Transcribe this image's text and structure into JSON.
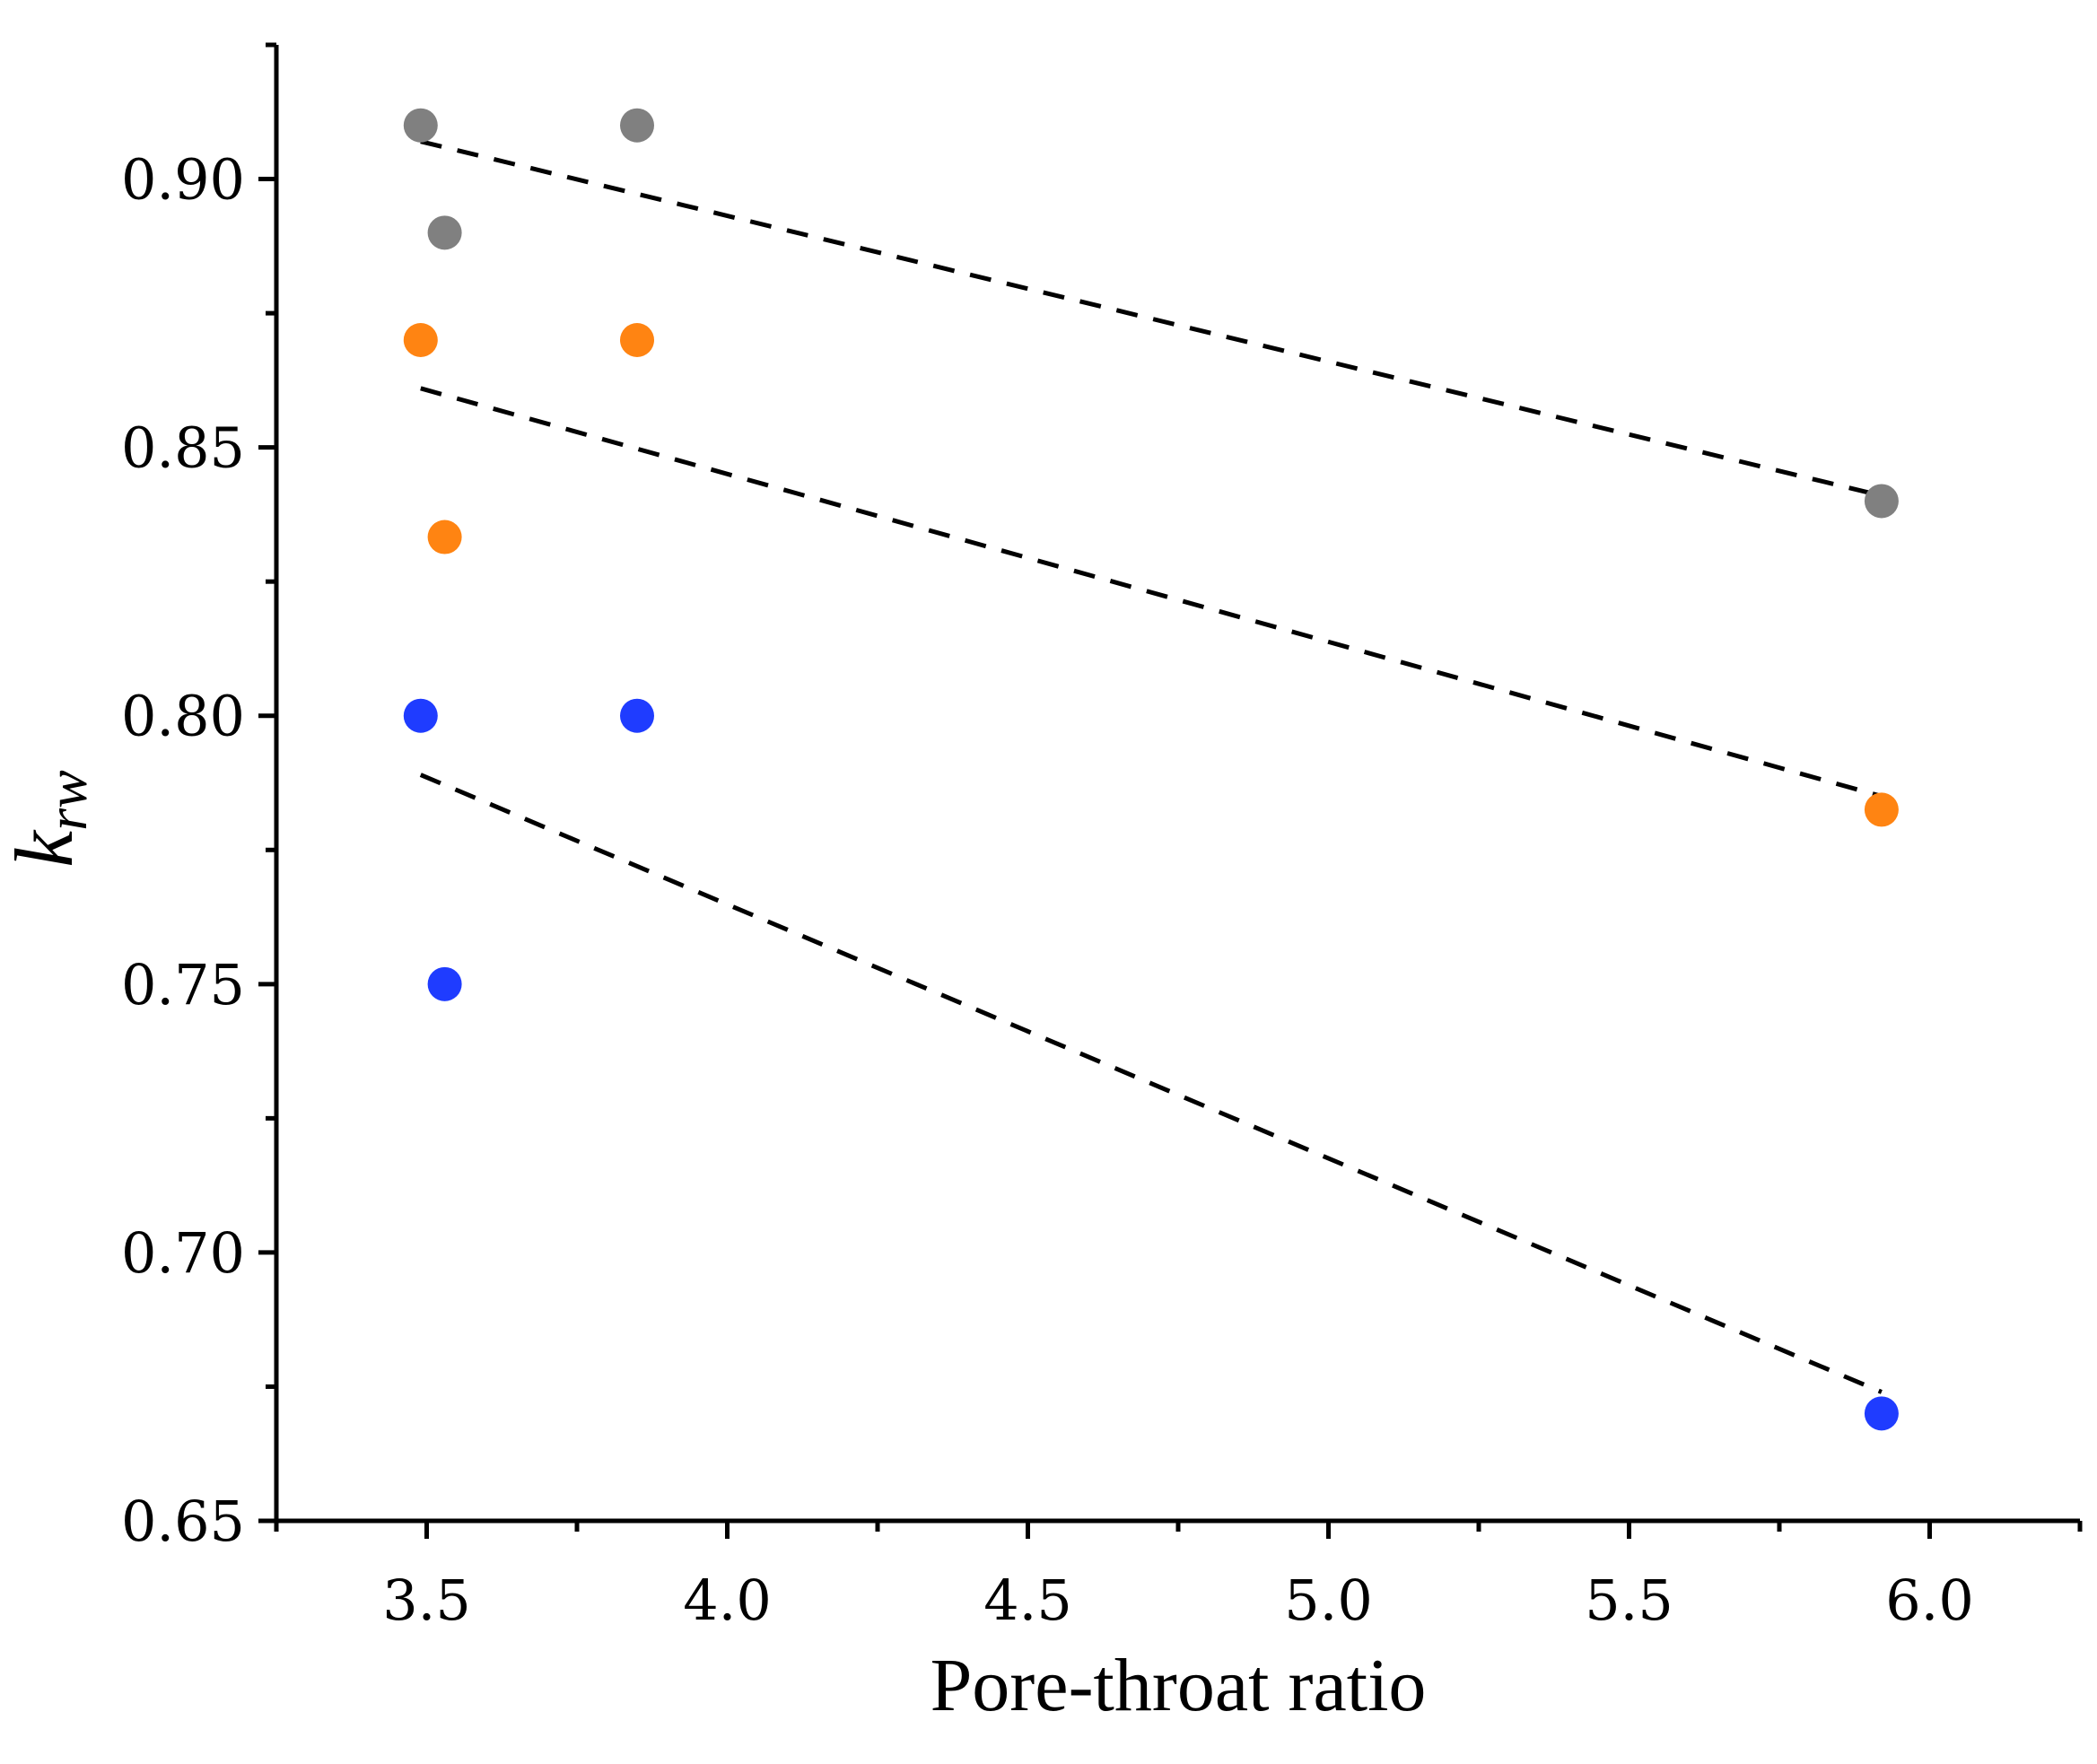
{
  "chart_data": {
    "type": "scatter",
    "title": "",
    "xlabel": "Pore-throat ratio",
    "ylabel": {
      "main": "k",
      "subscript": "rw"
    },
    "xlim": [
      3.25,
      6.25
    ],
    "ylim": [
      0.65,
      0.925
    ],
    "xticks": [
      3.5,
      4.0,
      4.5,
      5.0,
      5.5,
      6.0
    ],
    "xtick_labels": [
      "3.5",
      "4.0",
      "4.5",
      "5.0",
      "5.5",
      "6.0"
    ],
    "yticks": [
      0.65,
      0.7,
      0.75,
      0.8,
      0.85,
      0.9
    ],
    "ytick_labels": [
      "0.65",
      "0.70",
      "0.75",
      "0.80",
      "0.85",
      "0.90"
    ],
    "grid": false,
    "series": [
      {
        "name": "gray",
        "color": "#808080",
        "x": [
          3.49,
          3.53,
          3.85,
          5.92
        ],
        "y": [
          0.91,
          0.89,
          0.91,
          0.84
        ],
        "trend": {
          "x": [
            3.49,
            5.92
          ],
          "y": [
            0.907,
            0.841
          ]
        }
      },
      {
        "name": "orange",
        "color": "#ff8412",
        "x": [
          3.49,
          3.53,
          3.85,
          5.92
        ],
        "y": [
          0.87,
          0.8333,
          0.87,
          0.7825
        ],
        "trend": {
          "x": [
            3.49,
            5.92
          ],
          "y": [
            0.861,
            0.785
          ]
        }
      },
      {
        "name": "blue",
        "color": "#1f3cff",
        "x": [
          3.49,
          3.53,
          3.85,
          5.92
        ],
        "y": [
          0.8,
          0.75,
          0.8,
          0.67
        ],
        "trend": {
          "x": [
            3.49,
            5.92
          ],
          "y": [
            0.789,
            0.674
          ]
        }
      }
    ]
  }
}
